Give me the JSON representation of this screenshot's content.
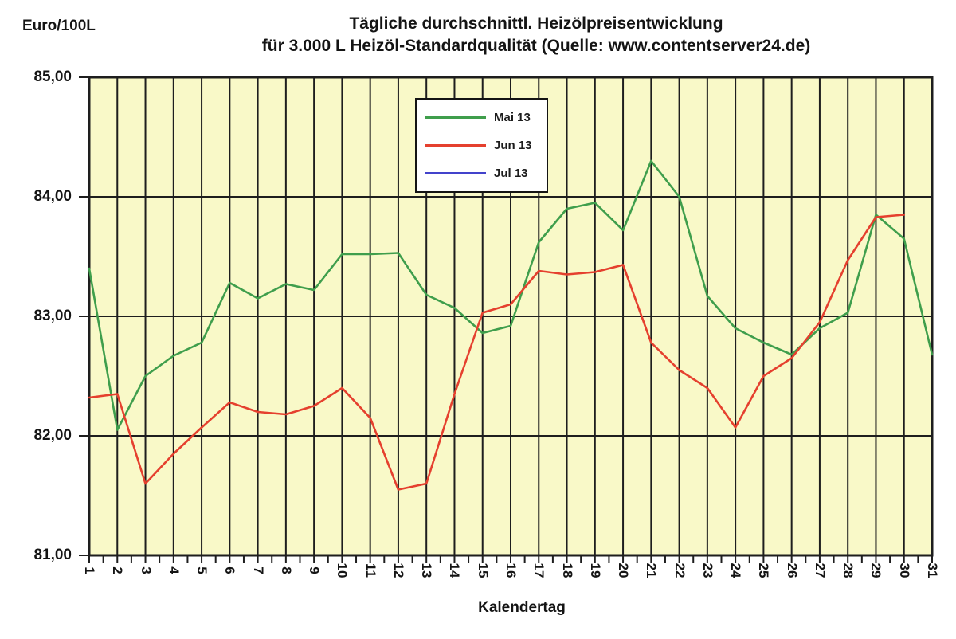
{
  "header": {
    "unit_label": "Euro/100L",
    "title_line1": "Tägliche durchschnittl. Heizölpreisentwicklung",
    "title_line2": "für 3.000 L Heizöl-Standardqualität (Quelle: www.contentserver24.de)"
  },
  "axes": {
    "x_title": "Kalendertag",
    "x_labels": [
      "1",
      "2",
      "3",
      "4",
      "5",
      "6",
      "7",
      "8",
      "9",
      "10",
      "11",
      "12",
      "13",
      "14",
      "15",
      "16",
      "17",
      "18",
      "19",
      "20",
      "21",
      "22",
      "23",
      "24",
      "25",
      "26",
      "27",
      "28",
      "29",
      "30",
      "31"
    ],
    "y_ticks": [
      {
        "label": "85,00",
        "value": 85
      },
      {
        "label": "84,00",
        "value": 84
      },
      {
        "label": "83,00",
        "value": 83
      },
      {
        "label": "82,00",
        "value": 82
      },
      {
        "label": "81,00",
        "value": 81
      }
    ]
  },
  "chart_data": {
    "type": "line",
    "title": "Tägliche durchschnittl. Heizölpreisentwicklung für 3.000 L Heizöl-Standardqualität (Quelle: www.contentserver24.de)",
    "xlabel": "Kalendertag",
    "ylabel": "Euro/100L",
    "x": [
      1,
      2,
      3,
      4,
      5,
      6,
      7,
      8,
      9,
      10,
      11,
      12,
      13,
      14,
      15,
      16,
      17,
      18,
      19,
      20,
      21,
      22,
      23,
      24,
      25,
      26,
      27,
      28,
      29,
      30,
      31
    ],
    "ylim": [
      81,
      85
    ],
    "grid": "horizontal-major-and-vertical-daily",
    "legend_position": "top-center",
    "colors": {
      "plot_bg": "#f9f9c8",
      "grid": "#1e1e1e",
      "text": "#141414",
      "outer_bg": "#ffffff"
    },
    "series": [
      {
        "name": "Mai 13",
        "color": "#3f9e4c",
        "values": [
          83.4,
          82.05,
          82.5,
          82.67,
          82.78,
          83.28,
          83.15,
          83.27,
          83.22,
          83.52,
          83.52,
          83.53,
          83.18,
          83.07,
          82.86,
          82.92,
          83.62,
          83.9,
          83.95,
          83.72,
          84.3,
          84.0,
          83.17,
          82.9,
          82.78,
          82.68,
          82.9,
          83.03,
          83.85,
          83.65,
          82.68
        ]
      },
      {
        "name": "Jun 13",
        "color": "#e5402e",
        "values": [
          82.32,
          82.35,
          81.6,
          81.85,
          82.07,
          82.28,
          82.2,
          82.18,
          82.25,
          82.4,
          82.15,
          81.55,
          81.6,
          82.35,
          83.03,
          83.1,
          83.38,
          83.35,
          83.37,
          83.43,
          82.78,
          82.55,
          82.4,
          82.07,
          82.5,
          82.65,
          82.95,
          83.47,
          83.83,
          83.85,
          null
        ]
      },
      {
        "name": "Jul 13",
        "color": "#4343cb",
        "values": [
          null,
          null,
          null,
          null,
          null,
          null,
          null,
          null,
          null,
          null,
          null,
          null,
          null,
          null,
          null,
          null,
          null,
          null,
          null,
          null,
          null,
          null,
          null,
          null,
          null,
          null,
          null,
          null,
          null,
          null,
          null
        ]
      }
    ]
  }
}
